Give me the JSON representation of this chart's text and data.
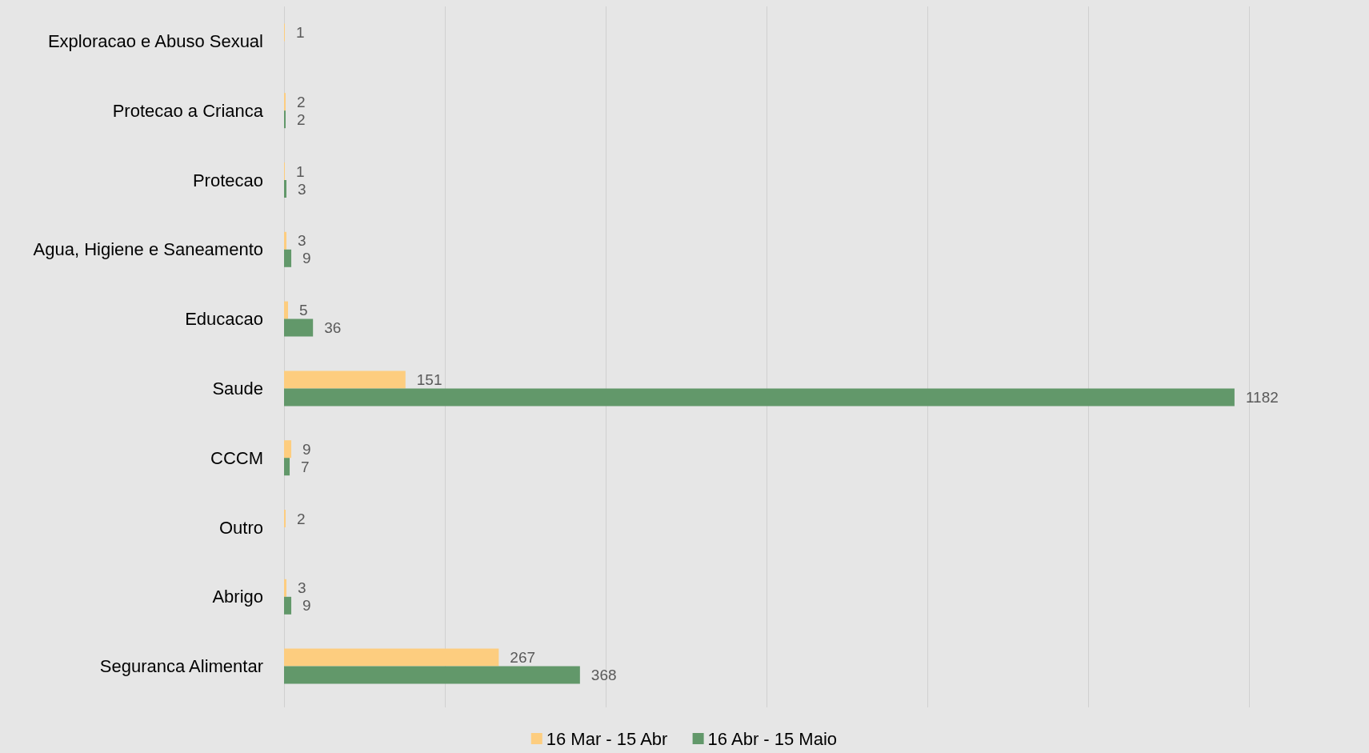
{
  "chart_data": {
    "type": "bar",
    "orientation": "horizontal",
    "categories": [
      "Exploracao e Abuso Sexual",
      "Protecao a Crianca",
      "Protecao",
      "Agua, Higiene e Saneamento",
      "Educacao",
      "Saude",
      "CCCM",
      "Outro",
      "Abrigo",
      "Seguranca Alimentar"
    ],
    "series": [
      {
        "name": "16 Mar - 15 Abr",
        "color": "#fdcd7f",
        "values": [
          1,
          2,
          1,
          3,
          5,
          151,
          9,
          2,
          3,
          267
        ]
      },
      {
        "name": "16 Abr - 15 Maio",
        "color": "#62986a",
        "values": [
          null,
          2,
          3,
          9,
          36,
          1182,
          7,
          null,
          9,
          368
        ]
      }
    ],
    "xlim": [
      0,
      1200
    ],
    "xticks": [
      {
        "value": 0,
        "label": null
      },
      {
        "value": 200,
        "label": null
      },
      {
        "value": 400,
        "label": null
      },
      {
        "value": 600,
        "label": null
      },
      {
        "value": 800,
        "label": null
      },
      {
        "value": 1000,
        "label": null
      },
      {
        "value": 1200,
        "label": null
      }
    ],
    "tick_labels": "y",
    "grid": "x",
    "legend": "bottom",
    "data_labels": true
  }
}
